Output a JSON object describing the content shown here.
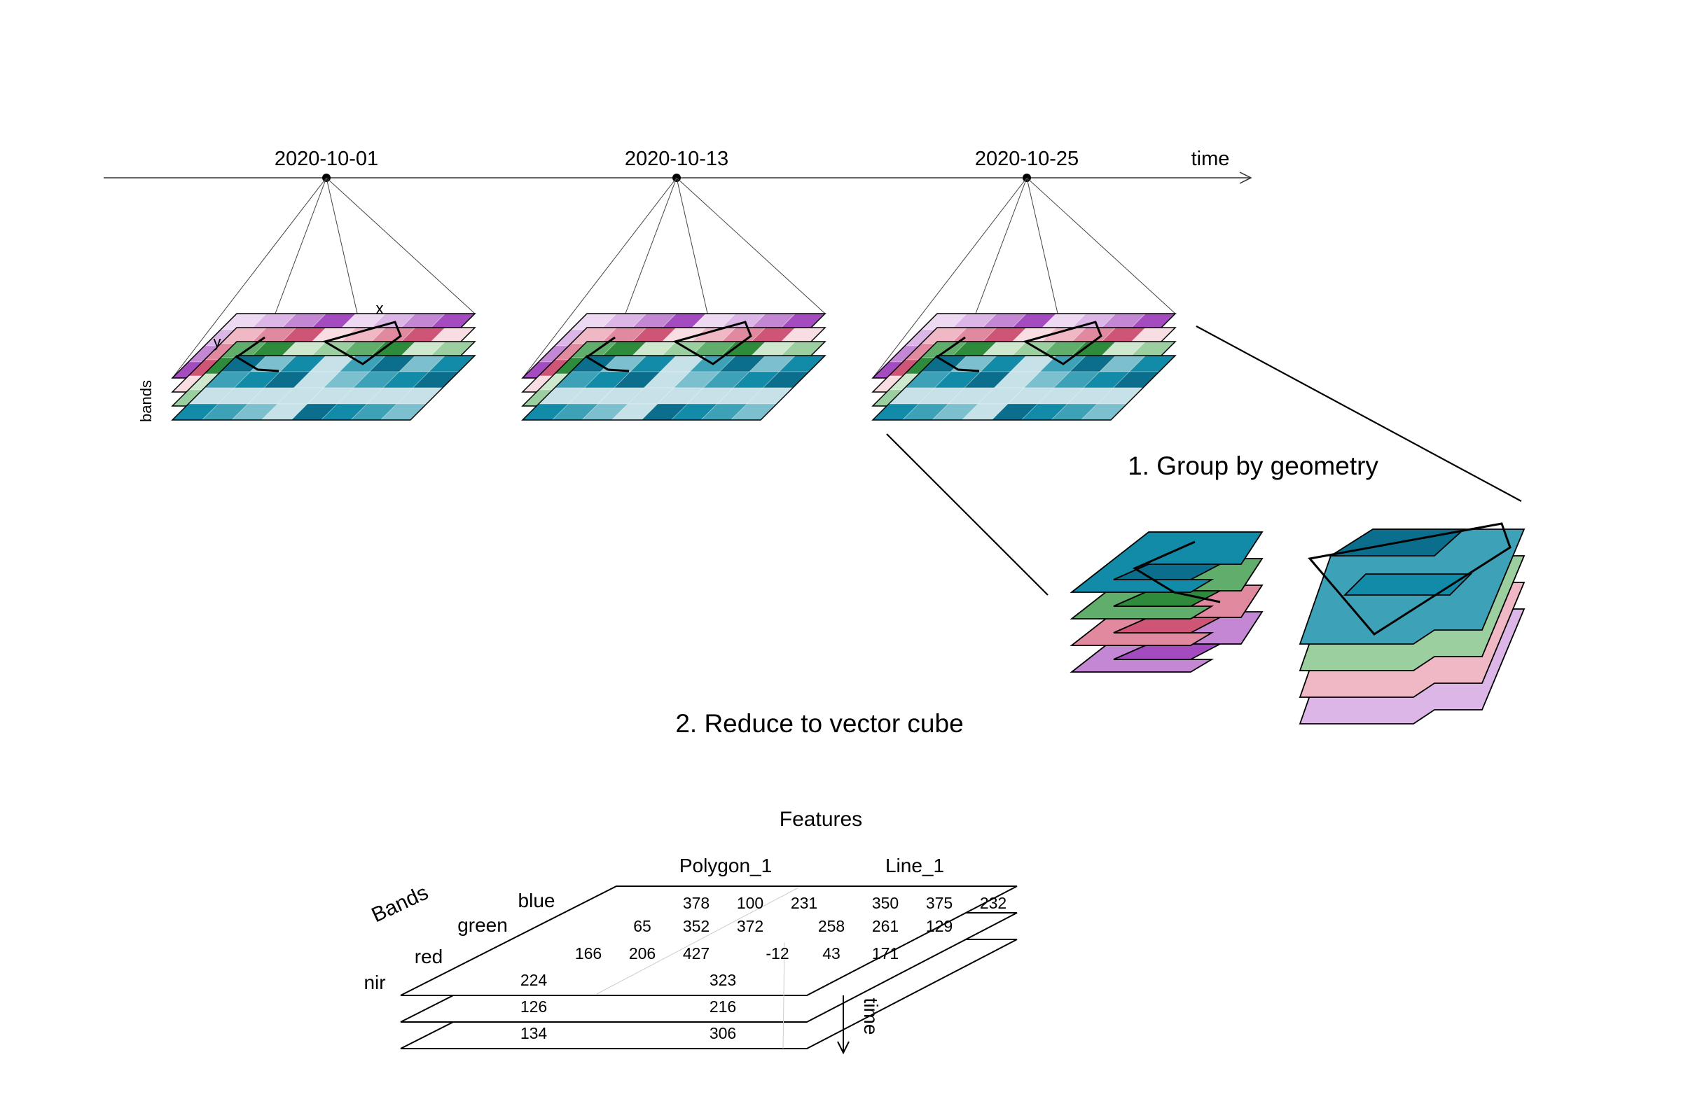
{
  "timeline": {
    "dates": [
      "2020-10-01",
      "2020-10-13",
      "2020-10-25"
    ],
    "axis_label": "time"
  },
  "cube_axes": {
    "x": "x",
    "y": "y",
    "bands": "bands"
  },
  "steps": {
    "group": "1. Group by geometry",
    "reduce": "2. Reduce to vector cube"
  },
  "vector_cube": {
    "features_label": "Features",
    "bands_label": "Bands",
    "time_label": "time",
    "band_names": [
      "blue",
      "green",
      "red",
      "nir"
    ],
    "feature_names": [
      "Polygon_1",
      "Line_1"
    ],
    "values": {
      "Polygon_1": {
        "blue": [
          378,
          100,
          231
        ],
        "green": [
          65,
          352,
          372
        ],
        "red": [
          166,
          206,
          427
        ],
        "nir": [
          224,
          126,
          134
        ]
      },
      "Line_1": {
        "blue": [
          350,
          375,
          232
        ],
        "green": [
          258,
          261,
          129
        ],
        "red": [
          -12,
          43,
          171
        ],
        "nir": [
          323,
          216,
          306
        ]
      }
    }
  },
  "colors": {
    "blue": [
      "#0b6e8c",
      "#128ba8",
      "#3da1b8",
      "#7cc0cf",
      "#c6e2e8"
    ],
    "green": [
      "#2e8b3b",
      "#61ad6c",
      "#9ccf9f",
      "#cde8cc"
    ],
    "red": [
      "#cf5577",
      "#e0899f",
      "#f0b8c5",
      "#f8dde3"
    ],
    "nir": [
      "#a54bc0",
      "#c487d4",
      "#dcb6e6",
      "#eed9f3"
    ]
  }
}
